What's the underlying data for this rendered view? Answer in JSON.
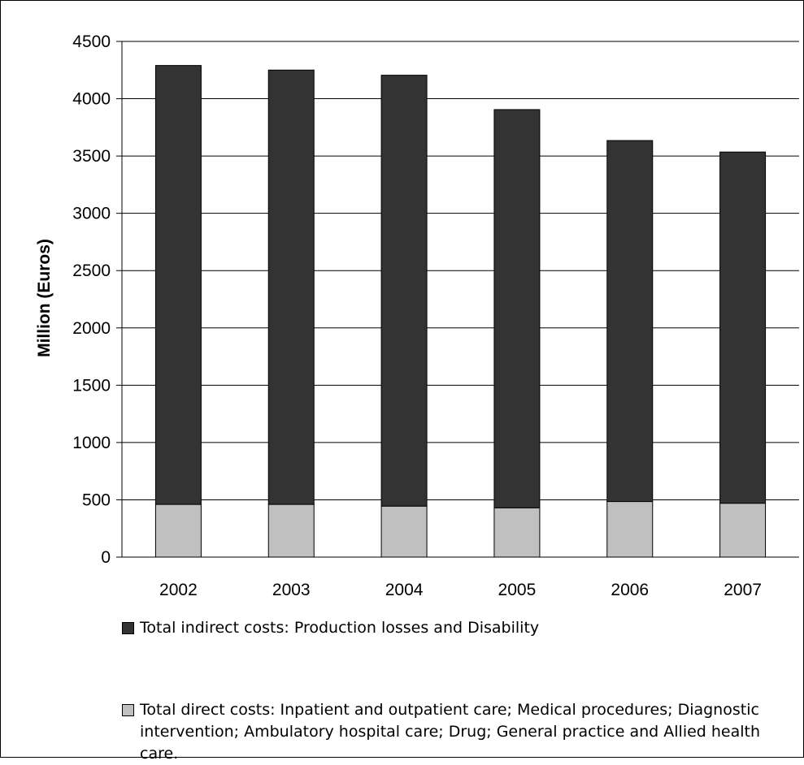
{
  "chart_data": {
    "type": "bar",
    "stacked": true,
    "title": "",
    "xlabel": "",
    "ylabel": "Million (Euros)",
    "ylim": [
      0,
      4500
    ],
    "yticks": [
      0,
      500,
      1000,
      1500,
      2000,
      2500,
      3000,
      3500,
      4000,
      4500
    ],
    "categories": [
      "2002",
      "2003",
      "2004",
      "2005",
      "2006",
      "2007"
    ],
    "grid": true,
    "legend_position": "bottom",
    "series": [
      {
        "name": "Total direct costs: Inpatient and outpatient care; Medical procedures; Diagnostic intervention; Ambulatory hospital care; Drug;  General practice and Allied health care.",
        "color": "#c0c0c0",
        "values": [
          460,
          460,
          445,
          430,
          485,
          470
        ]
      },
      {
        "name": "Total indirect costs: Production losses and Disability",
        "color": "#333333",
        "values": [
          3830,
          3790,
          3760,
          3475,
          3150,
          3065
        ]
      }
    ]
  }
}
